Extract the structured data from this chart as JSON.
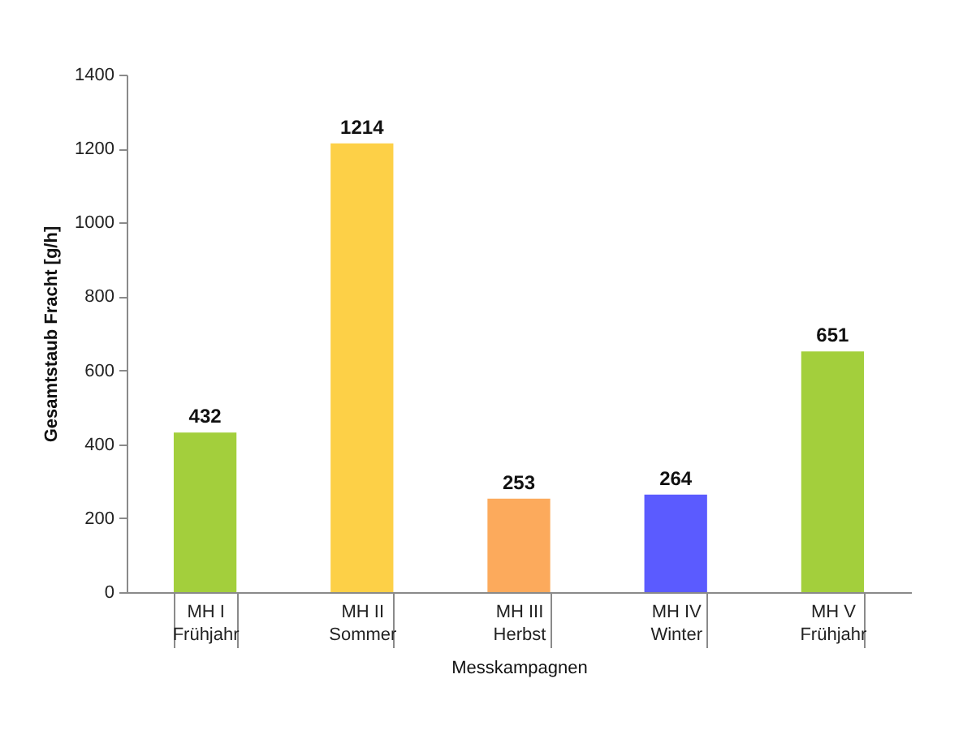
{
  "chart_data": {
    "type": "bar",
    "xlabel": "Messkampagnen",
    "ylabel": "Gesamtstaub Fracht [g/h]",
    "categories": [
      "MH I\nFrühjahr",
      "MH II\nSommer",
      "MH III\nHerbst",
      "MH IV\nWinter",
      "MH V\nFrühjahr"
    ],
    "values": [
      432,
      1214,
      253,
      264,
      651
    ],
    "colors": [
      "#a3cf3c",
      "#fdd047",
      "#fcaa5c",
      "#5b5bff",
      "#a3cf3c"
    ],
    "ylim": [
      0,
      1400
    ],
    "yticks": [
      0,
      200,
      400,
      600,
      800,
      1000,
      1200,
      1400
    ],
    "grid": false,
    "legend": false,
    "data_labels": true
  }
}
